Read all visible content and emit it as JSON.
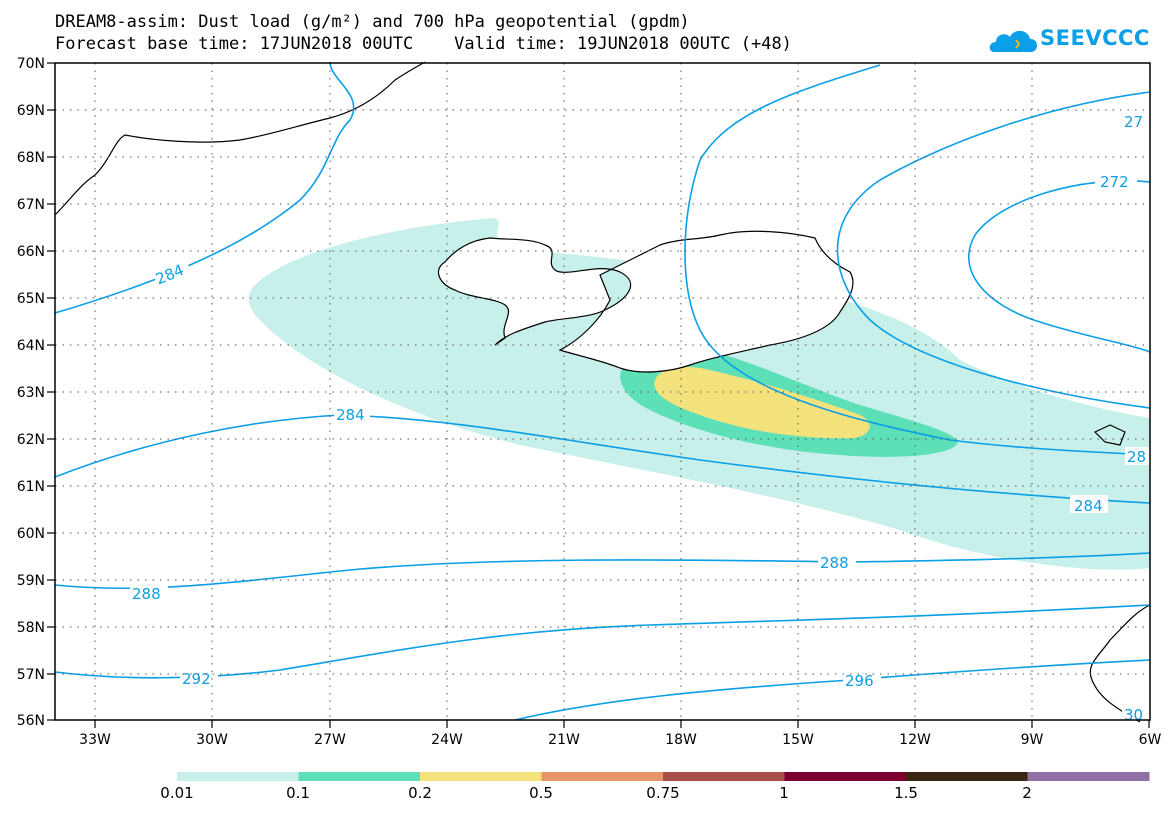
{
  "title_line1": "DREAM8-assim: Dust load (g/m²) and 700 hPa geopotential (gpdm)",
  "title_line2": "Forecast base time: 17JUN2018 00UTC    Valid time: 19JUN2018 00UTC (+48)",
  "logo_text": "SEEVCCC",
  "map": {
    "lon_labels": [
      "33W",
      "30W",
      "27W",
      "24W",
      "21W",
      "18W",
      "15W",
      "12W",
      "9W",
      "6W"
    ],
    "lat_labels": [
      "70N",
      "69N",
      "68N",
      "67N",
      "66N",
      "65N",
      "64N",
      "63N",
      "62N",
      "61N",
      "60N",
      "59N",
      "58N",
      "57N",
      "56N"
    ],
    "contour_labels": [
      "284",
      "284",
      "284",
      "288",
      "292",
      "296",
      "272",
      "27",
      "28",
      "30"
    ]
  },
  "colorbar": {
    "labels": [
      "0.01",
      "0.1",
      "0.2",
      "0.5",
      "0.75",
      "1",
      "1.5",
      "2"
    ],
    "colors": [
      "#c7f0ea",
      "#5ddfb8",
      "#f4e27c",
      "#e8946b",
      "#a84f4a",
      "#7b0030",
      "#3a2412",
      "#9270a5"
    ]
  },
  "colors": {
    "contour": "#0a9fe6",
    "land": "#ffffff",
    "coast": "#000000"
  }
}
